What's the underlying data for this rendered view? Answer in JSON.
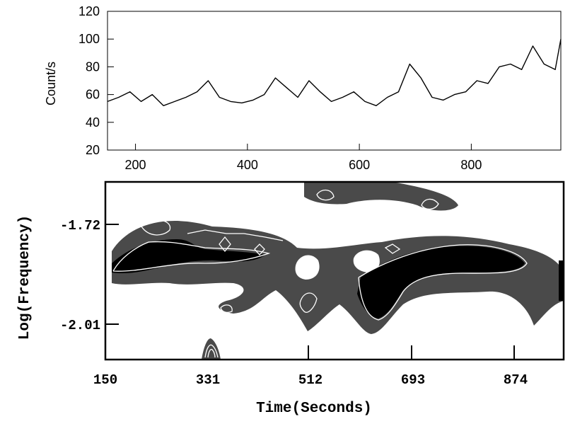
{
  "chart_data": [
    {
      "type": "line",
      "title": "",
      "xlabel": "",
      "ylabel": "Count/s",
      "xlim": [
        150,
        960
      ],
      "ylim": [
        20,
        120
      ],
      "x_ticks": [
        200,
        400,
        600,
        800
      ],
      "y_ticks": [
        20,
        40,
        60,
        80,
        100,
        120
      ],
      "grid": false,
      "series": [
        {
          "x": [
            150,
            170,
            190,
            210,
            230,
            250,
            270,
            290,
            310,
            330,
            350,
            370,
            390,
            410,
            430,
            450,
            470,
            490,
            510,
            530,
            550,
            570,
            590,
            610,
            630,
            650,
            670,
            690,
            710,
            730,
            750,
            770,
            790,
            810,
            830,
            850,
            870,
            890,
            910,
            930,
            950,
            960
          ],
          "values": [
            55,
            58,
            62,
            55,
            60,
            52,
            55,
            58,
            62,
            70,
            58,
            55,
            54,
            56,
            60,
            72,
            65,
            58,
            70,
            62,
            55,
            58,
            62,
            55,
            52,
            58,
            62,
            82,
            72,
            58,
            56,
            60,
            62,
            70,
            68,
            80,
            82,
            78,
            95,
            82,
            78,
            100
          ]
        }
      ]
    },
    {
      "type": "heatmap",
      "title": "",
      "xlabel": "Time(Seconds)",
      "ylabel": "Log(Frequency)",
      "xlim": [
        150,
        960
      ],
      "ylim": [
        -2.15,
        -1.52
      ],
      "x_ticks": [
        "150",
        "331",
        "512",
        "693",
        "874"
      ],
      "y_ticks": [
        "-1.72",
        "-2.01"
      ],
      "grid": false,
      "levels": [
        "low",
        "mid",
        "high"
      ],
      "level_colors": [
        "#ffffff",
        "#4a4a4a",
        "#000000"
      ],
      "contour_color": "#ffffff"
    }
  ]
}
